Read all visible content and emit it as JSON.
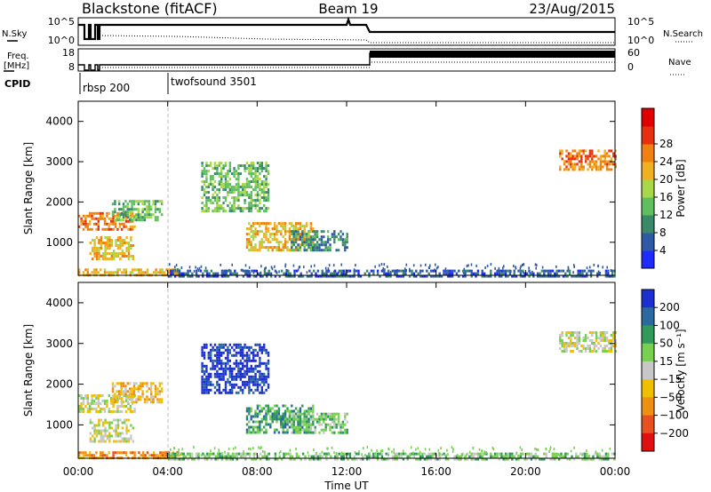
{
  "header": {
    "station": "Blackstone (fitACF)",
    "beam": "Beam 19",
    "date": "23/Aug/2015"
  },
  "status_panels": {
    "nsky_label": "N.Sky",
    "nsearch_label": "N.Search",
    "freq_label_line1": "Freq.",
    "freq_label_line2": "[MHz]",
    "nave_label": "Nave",
    "cpid_label": "CPID",
    "nsky_ticks": [
      "10^5",
      "10^0"
    ],
    "nsearch_ticks": [
      "10^5",
      "10^0"
    ],
    "freq_ticks": [
      "18",
      "8"
    ],
    "nave_ticks": [
      "60",
      "0"
    ],
    "cpid_segments": [
      {
        "label": "rbsp 200",
        "start_hour": 0.0
      },
      {
        "label": "twofsound 3501",
        "start_hour": 4.0
      }
    ]
  },
  "x_axis": {
    "label": "Time UT",
    "ticks": [
      "00:00",
      "04:00",
      "08:00",
      "12:00",
      "16:00",
      "20:00",
      "00:00"
    ]
  },
  "chart_data": [
    {
      "type": "heatmap",
      "title": "",
      "ylabel": "Slant Range [km]",
      "xlabel": "",
      "xlim_hours": [
        0,
        24
      ],
      "ylim": [
        180,
        4500
      ],
      "y_ticks": [
        1000,
        2000,
        3000,
        4000
      ],
      "colorbar": {
        "label": "Power [dB]",
        "ticks": [
          "4",
          "8",
          "12",
          "16",
          "20",
          "24",
          "28"
        ],
        "colors": [
          "#1f2aff",
          "#2f5aa8",
          "#3a8a6a",
          "#5fbf5f",
          "#a8d848",
          "#f0b020",
          "#f08010",
          "#e83010",
          "#e00000"
        ]
      },
      "echo_regions": [
        {
          "t0": 0.0,
          "t1": 2.5,
          "r0": 1350,
          "r1": 1750,
          "level": 6
        },
        {
          "t0": 1.5,
          "t1": 3.7,
          "r0": 1550,
          "r1": 2050,
          "level": 3
        },
        {
          "t0": 0.5,
          "t1": 2.5,
          "r0": 600,
          "r1": 1150,
          "level": 5
        },
        {
          "t0": 0.0,
          "t1": 4.5,
          "r0": 200,
          "r1": 350,
          "level": 5
        },
        {
          "t0": 4.0,
          "t1": 24.0,
          "r0": 180,
          "r1": 320,
          "level": 1
        },
        {
          "t0": 5.5,
          "t1": 8.5,
          "r0": 1800,
          "r1": 3000,
          "level": 3
        },
        {
          "t0": 7.5,
          "t1": 10.5,
          "r0": 800,
          "r1": 1500,
          "level": 5
        },
        {
          "t0": 9.5,
          "t1": 12.0,
          "r0": 800,
          "r1": 1300,
          "level": 2
        },
        {
          "t0": 21.5,
          "t1": 24.0,
          "r0": 2800,
          "r1": 3300,
          "level": 6
        }
      ]
    },
    {
      "type": "heatmap",
      "title": "",
      "ylabel": "Slant Range [km]",
      "xlabel": "Time UT",
      "xlim_hours": [
        0,
        24
      ],
      "ylim": [
        180,
        4500
      ],
      "y_ticks": [
        1000,
        2000,
        3000,
        4000
      ],
      "colorbar": {
        "label": "Velocity [m s⁻¹]",
        "ticks": [
          "200",
          "100",
          "50",
          "15",
          "−15",
          "−50",
          "−100",
          "−200"
        ],
        "colors": [
          "#1c2fd0",
          "#2a6aa0",
          "#2f9a5a",
          "#78d050",
          "#c8c8c8",
          "#f0c000",
          "#f09010",
          "#e85020",
          "#e01010"
        ]
      },
      "echo_regions": [
        {
          "t0": 0.0,
          "t1": 2.5,
          "r0": 1350,
          "r1": 1750,
          "level": 4
        },
        {
          "t0": 1.5,
          "t1": 3.7,
          "r0": 1550,
          "r1": 2050,
          "level": 5
        },
        {
          "t0": 0.5,
          "t1": 2.5,
          "r0": 600,
          "r1": 1150,
          "level": 4
        },
        {
          "t0": 0.0,
          "t1": 4.5,
          "r0": 200,
          "r1": 350,
          "level": 6
        },
        {
          "t0": 4.0,
          "t1": 24.0,
          "r0": 180,
          "r1": 320,
          "level": 3
        },
        {
          "t0": 5.5,
          "t1": 8.5,
          "r0": 1800,
          "r1": 3000,
          "level": 0
        },
        {
          "t0": 7.5,
          "t1": 10.5,
          "r0": 800,
          "r1": 1500,
          "level": 2
        },
        {
          "t0": 9.5,
          "t1": 12.0,
          "r0": 800,
          "r1": 1300,
          "level": 3
        },
        {
          "t0": 21.5,
          "t1": 24.0,
          "r0": 2800,
          "r1": 3300,
          "level": 4
        }
      ]
    }
  ]
}
